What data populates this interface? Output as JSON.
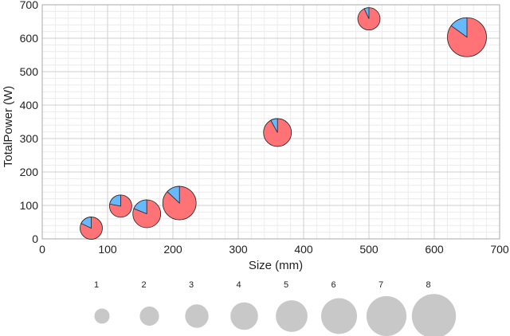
{
  "chart_data": {
    "type": "scatter",
    "title": "",
    "xlabel": "Size (mm)",
    "ylabel": "TotalPower (W)",
    "xlim": [
      0,
      700
    ],
    "ylim": [
      0,
      700
    ],
    "xticks": [
      0,
      100,
      200,
      300,
      400,
      500,
      600,
      700
    ],
    "yticks": [
      0,
      100,
      200,
      300,
      400,
      500,
      600,
      700
    ],
    "grid": true,
    "minor_grid": true,
    "marker": "pie",
    "pie_colors": [
      "#ff7276",
      "#66b8ff"
    ],
    "points": [
      {
        "x": 75,
        "y": 32,
        "size": 3,
        "share": 0.18
      },
      {
        "x": 120,
        "y": 98,
        "size": 3,
        "share": 0.22
      },
      {
        "x": 160,
        "y": 75,
        "size": 4,
        "share": 0.19
      },
      {
        "x": 210,
        "y": 107,
        "size": 5,
        "share": 0.13
      },
      {
        "x": 360,
        "y": 318,
        "size": 4,
        "share": 0.08
      },
      {
        "x": 500,
        "y": 658,
        "size": 3,
        "share": 0.07
      },
      {
        "x": 650,
        "y": 603,
        "size": 6,
        "share": 0.15
      }
    ],
    "size_legend": {
      "color": "#c8c8c8",
      "items": [
        {
          "label": "1",
          "size": 1
        },
        {
          "label": "2",
          "size": 2
        },
        {
          "label": "3",
          "size": 3
        },
        {
          "label": "4",
          "size": 4
        },
        {
          "label": "5",
          "size": 5
        },
        {
          "label": "6",
          "size": 6
        },
        {
          "label": "7",
          "size": 7
        },
        {
          "label": "8",
          "size": 8
        }
      ]
    }
  }
}
